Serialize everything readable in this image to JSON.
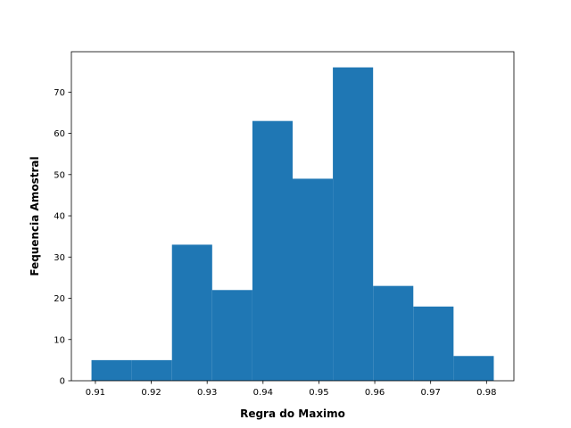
{
  "chart_data": {
    "type": "bar",
    "subtype": "histogram",
    "xlabel": "Regra do Maximo",
    "ylabel": "Fequencia Amostral",
    "bin_edges": [
      0.9093,
      0.9165,
      0.9237,
      0.9309,
      0.9381,
      0.9453,
      0.9525,
      0.9597,
      0.9669,
      0.9741,
      0.9813
    ],
    "values": [
      5,
      5,
      33,
      22,
      63,
      49,
      76,
      23,
      18,
      6
    ],
    "xlim": [
      0.9057,
      0.9849
    ],
    "ylim": [
      0,
      79.8
    ],
    "x_ticks": [
      0.91,
      0.92,
      0.93,
      0.94,
      0.95,
      0.96,
      0.97,
      0.98
    ],
    "x_tick_labels": [
      "0.91",
      "0.92",
      "0.93",
      "0.94",
      "0.95",
      "0.96",
      "0.97",
      "0.98"
    ],
    "y_ticks": [
      0,
      10,
      20,
      30,
      40,
      50,
      60,
      70
    ],
    "y_tick_labels": [
      "0",
      "10",
      "20",
      "30",
      "40",
      "50",
      "60",
      "70"
    ],
    "bar_color": "#1f77b4",
    "grid": false,
    "legend": false
  }
}
